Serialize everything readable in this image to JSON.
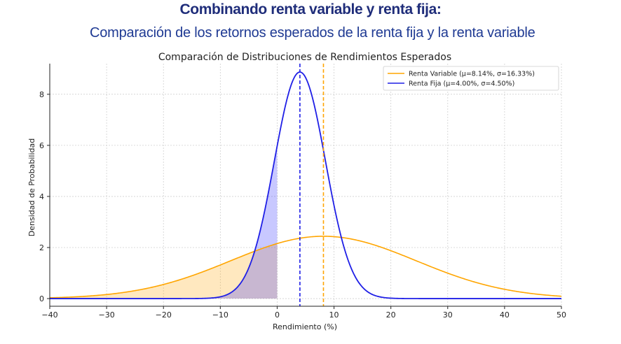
{
  "header": {
    "title": "Combinando renta variable y renta fija:",
    "subtitle": "Comparación de los retornos esperados de la renta fija y la renta variable"
  },
  "chart_data": {
    "type": "line",
    "title": "Comparación de Distribuciones de Rendimientos Esperados",
    "xlabel": "Rendimiento (%)",
    "ylabel": "Densidad de Probabilidad",
    "xlim": [
      -40,
      50
    ],
    "ylim": [
      -0.3,
      9.2
    ],
    "x_ticks": [
      -40,
      -30,
      -20,
      -10,
      0,
      10,
      20,
      30,
      40,
      50
    ],
    "x_tick_labels": [
      "−40",
      "−30",
      "−20",
      "−10",
      "0",
      "10",
      "20",
      "30",
      "40",
      "50"
    ],
    "y_ticks": [
      0,
      2,
      4,
      6,
      8
    ],
    "y_tick_labels": [
      "0",
      "2",
      "4",
      "6",
      "8"
    ],
    "grid": true,
    "legend_position": "top-right",
    "series": [
      {
        "name": "Renta Variable (μ=8.14%, σ=16.33%)",
        "distribution": "normal",
        "mean": 8.14,
        "std": 16.33,
        "peak_density": 2.44,
        "color": "#ffa500",
        "fill_below_x": 0,
        "fill_color": "#ffa500"
      },
      {
        "name": "Renta Fija (μ=4.00%, σ=4.50%)",
        "distribution": "normal",
        "mean": 4.0,
        "std": 4.5,
        "peak_density": 8.87,
        "color": "#1f1fe6",
        "fill_below_x": 0,
        "fill_color": "#3a3aff"
      }
    ],
    "mean_lines": [
      {
        "x": 8.14,
        "color": "#ffa500",
        "style": "dashed"
      },
      {
        "x": 4.0,
        "color": "#1f1fe6",
        "style": "dashed"
      }
    ]
  }
}
